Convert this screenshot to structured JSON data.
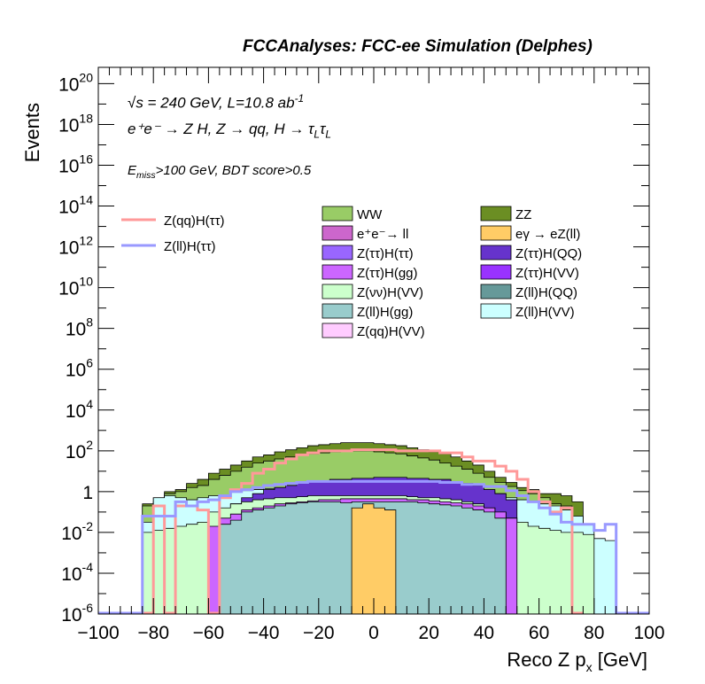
{
  "header": {
    "title": "FCCAnalyses: FCC-ee Simulation (Delphes)"
  },
  "annotations": {
    "energy": "√s = 240 GeV, L=10.8 ab",
    "energy_exp": "-1",
    "process": "e⁺e⁻ → Z H, Z → qq, H → τ",
    "process_sub": "L",
    "selection_prefix": "E",
    "selection_sub": "miss",
    "selection_rest": ">100 GeV, BDT score>0.5"
  },
  "chart_data": {
    "type": "histogram",
    "title": "FCCAnalyses: FCC-ee Simulation (Delphes)",
    "xlabel": "Reco Z p",
    "xlabel_sub": "x",
    "xlabel_unit": " [GeV]",
    "ylabel": "Events",
    "xlim": [
      -100,
      100
    ],
    "ylim_log10": [
      -6,
      20.8
    ],
    "log_y": true,
    "x_ticks": [
      -100,
      -80,
      -60,
      -40,
      -20,
      0,
      20,
      40,
      60,
      80,
      100
    ],
    "y_ticks": [
      {
        "exp": -6,
        "label": "10",
        "sup": "-6"
      },
      {
        "exp": -4,
        "label": "10",
        "sup": "-4"
      },
      {
        "exp": -2,
        "label": "10",
        "sup": "-2"
      },
      {
        "exp": 0,
        "label": "1",
        "sup": ""
      },
      {
        "exp": 2,
        "label": "10",
        "sup": "2"
      },
      {
        "exp": 4,
        "label": "10",
        "sup": "4"
      },
      {
        "exp": 6,
        "label": "10",
        "sup": "6"
      },
      {
        "exp": 8,
        "label": "10",
        "sup": "8"
      },
      {
        "exp": 10,
        "label": "10",
        "sup": "10"
      },
      {
        "exp": 12,
        "label": "10",
        "sup": "12"
      },
      {
        "exp": 14,
        "label": "10",
        "sup": "14"
      },
      {
        "exp": 16,
        "label": "10",
        "sup": "16"
      },
      {
        "exp": 18,
        "label": "10",
        "sup": "18"
      },
      {
        "exp": 20,
        "label": "10",
        "sup": "20"
      }
    ],
    "bin_width": 4,
    "stack_envelopes": [
      {
        "name": "Z(qq)H(VV)",
        "color": "#ffccff",
        "x_range": [
          -52,
          68
        ],
        "log10_values": [
          -0.7,
          -0.4,
          -0.1,
          0.2,
          0.4,
          0.6,
          0.8,
          0.9,
          1.0,
          1.05,
          1.1,
          1.15,
          1.2,
          1.2,
          1.2,
          1.2,
          1.2,
          1.15,
          1.1,
          1.05,
          1.0,
          0.9,
          0.8,
          0.6,
          0.4,
          0.1,
          -0.2,
          -0.6,
          -1.0,
          -1.5
        ]
      },
      {
        "name": "ZZ",
        "color": "#6b8e23",
        "x_range": [
          -88,
          80
        ],
        "log10_values": [
          -6,
          -0.6,
          -0.3,
          0.0,
          0.1,
          0.4,
          0.6,
          0.9,
          1.1,
          1.3,
          1.5,
          1.7,
          1.8,
          1.95,
          2.05,
          2.15,
          2.25,
          2.3,
          2.35,
          2.4,
          2.4,
          2.4,
          2.35,
          2.3,
          2.25,
          2.15,
          2.05,
          1.95,
          1.85,
          1.7,
          1.5,
          1.3,
          1.0,
          0.7,
          0.45,
          0.2,
          0.1,
          -0.1,
          -0.1,
          -0.2,
          -0.5,
          -6
        ]
      },
      {
        "name": "WW",
        "color": "#99cc66",
        "x_range": [
          -88,
          76
        ],
        "log10_values": [
          -6,
          -0.7,
          -0.5,
          -0.1,
          0.0,
          0.2,
          0.3,
          0.6,
          0.8,
          1.0,
          1.2,
          1.4,
          1.5,
          1.6,
          1.7,
          1.8,
          1.85,
          1.9,
          1.95,
          2.0,
          2.0,
          2.0,
          1.95,
          1.9,
          1.85,
          1.75,
          1.65,
          1.55,
          1.4,
          1.25,
          1.1,
          0.9,
          0.7,
          0.45,
          0.25,
          0.05,
          -0.1,
          -0.3,
          -0.6,
          -0.7,
          -6
        ]
      },
      {
        "name": "Z(ll)H(VV)",
        "color": "#ccffff",
        "x_range": [
          -84,
          88
        ],
        "log10_values": [
          -1.5,
          -0.3,
          -0.2,
          -0.3,
          -0.4,
          -0.3,
          -0.2,
          -0.2,
          0.0,
          0.05,
          0.1,
          0.15,
          0.2,
          0.2,
          0.25,
          0.25,
          0.3,
          0.3,
          0.3,
          0.3,
          0.3,
          0.3,
          0.3,
          0.3,
          0.25,
          0.25,
          0.2,
          0.2,
          0.15,
          0.1,
          0.05,
          0.0,
          -0.1,
          -0.3,
          -0.4,
          -0.5,
          -0.6,
          -0.7,
          -0.9,
          -1.2,
          -1.6,
          -2.3,
          -2.4
        ]
      },
      {
        "name": "Z(ττ)H(QQ)",
        "color": "#6633cc",
        "x_range": [
          -52,
          52
        ],
        "log10_values": [
          -0.6,
          -0.3,
          -0.1,
          0.1,
          0.2,
          0.3,
          0.4,
          0.5,
          0.5,
          0.6,
          0.6,
          0.65,
          0.65,
          0.7,
          0.7,
          0.7,
          0.65,
          0.65,
          0.6,
          0.6,
          0.5,
          0.4,
          0.3,
          0.1,
          -0.1,
          -0.4
        ]
      },
      {
        "name": "Z(νν)H(VV)",
        "color": "#ccffcc",
        "x_range": [
          -84,
          80
        ],
        "log10_values": [
          -2.0,
          -1.9,
          -1.8,
          -1.7,
          -1.6,
          -1.5,
          -1.0,
          -0.8,
          -0.6,
          -0.5,
          -0.4,
          -0.35,
          -0.3,
          -0.3,
          -0.25,
          -0.2,
          -0.2,
          -0.2,
          -0.2,
          -0.2,
          -0.2,
          -0.2,
          -0.2,
          -0.2,
          -0.25,
          -0.3,
          -0.3,
          -0.35,
          -0.4,
          -0.5,
          -0.6,
          -0.8,
          -1.0,
          -1.3,
          -1.5,
          -1.7,
          -1.8,
          -1.9,
          -2.0,
          -2.0,
          -2.1
        ]
      },
      {
        "name": "Z(ττ)H(gg)",
        "color": "#cc66ff",
        "x_range": [
          -60,
          52
        ],
        "log10_values": [
          -1.7,
          -1.3,
          -1.1,
          -0.9,
          -0.8,
          -0.7,
          -0.6,
          -0.55,
          -0.5,
          -0.45,
          -0.4,
          -0.4,
          -0.35,
          -0.35,
          -0.35,
          -0.35,
          -0.35,
          -0.35,
          -0.4,
          -0.4,
          -0.45,
          -0.5,
          -0.55,
          -0.6,
          -0.7,
          -0.8,
          -1.0,
          -1.3
        ]
      },
      {
        "name": "Z(ll)H(gg)",
        "color": "#99cccc",
        "x_range": [
          -56,
          48
        ],
        "log10_values": [
          -1.6,
          -1.4,
          -1.0,
          -0.9,
          -0.8,
          -0.7,
          -0.6,
          -0.55,
          -0.5,
          -0.5,
          -0.5,
          -0.55,
          -0.5,
          -0.5,
          -0.5,
          -0.5,
          -0.5,
          -0.5,
          -0.55,
          -0.6,
          -0.65,
          -0.7,
          -0.8,
          -0.9,
          -1.0,
          -1.3
        ]
      },
      {
        "name": "eγ → eZ(ll)",
        "color": "#ffcc66",
        "x_range": [
          -8,
          8
        ],
        "log10_values": [
          -0.8,
          -0.6,
          -0.8,
          -0.9
        ]
      }
    ],
    "signal_lines": [
      {
        "name": "Z(qq)H(ττ)",
        "color": "#ff9999",
        "points": [
          [
            -88,
            -6
          ],
          [
            -80,
            -6
          ],
          [
            -80,
            -0.7
          ],
          [
            -76,
            -0.7
          ],
          [
            -76,
            -6
          ],
          [
            -72,
            -6
          ],
          [
            -72,
            -0.7
          ],
          [
            -64,
            -0.7
          ],
          [
            -64,
            -0.9
          ],
          [
            -60,
            -0.9
          ],
          [
            -60,
            -6
          ],
          [
            -56,
            -6
          ],
          [
            -56,
            -0.3
          ],
          [
            -52,
            -0.3
          ],
          [
            -52,
            0.1
          ],
          [
            -48,
            0.1
          ],
          [
            -48,
            0.4
          ],
          [
            -44,
            0.4
          ],
          [
            -44,
            0.9
          ],
          [
            -40,
            0.9
          ],
          [
            -40,
            1.1
          ],
          [
            -36,
            1.1
          ],
          [
            -36,
            1.4
          ],
          [
            -32,
            1.4
          ],
          [
            -32,
            1.6
          ],
          [
            -28,
            1.6
          ],
          [
            -28,
            1.8
          ],
          [
            -24,
            1.8
          ],
          [
            -24,
            1.9
          ],
          [
            -20,
            1.9
          ],
          [
            -20,
            2.0
          ],
          [
            -8,
            2.0
          ],
          [
            -8,
            2.05
          ],
          [
            8,
            2.05
          ],
          [
            8,
            2.0
          ],
          [
            24,
            2.0
          ],
          [
            24,
            1.9
          ],
          [
            32,
            1.9
          ],
          [
            32,
            1.7
          ],
          [
            36,
            1.7
          ],
          [
            36,
            1.5
          ],
          [
            44,
            1.5
          ],
          [
            44,
            1.25
          ],
          [
            48,
            1.25
          ],
          [
            48,
            1.0
          ],
          [
            52,
            1.0
          ],
          [
            52,
            0.6
          ],
          [
            56,
            0.6
          ],
          [
            56,
            0.0
          ],
          [
            60,
            0.0
          ],
          [
            60,
            -0.5
          ],
          [
            64,
            -0.5
          ],
          [
            64,
            -1.0
          ],
          [
            68,
            -1.0
          ],
          [
            68,
            -0.8
          ],
          [
            72,
            -0.8
          ],
          [
            72,
            -6
          ],
          [
            76,
            -6
          ]
        ]
      },
      {
        "name": "Z(ll)H(ττ)",
        "color": "#9999ff",
        "points": [
          [
            -100,
            -6
          ],
          [
            -84,
            -6
          ],
          [
            -84,
            -1.2
          ],
          [
            -72,
            -1.2
          ],
          [
            -72,
            -0.5
          ],
          [
            -68,
            -0.5
          ],
          [
            -68,
            -0.7
          ],
          [
            -64,
            -0.7
          ],
          [
            -64,
            -0.5
          ],
          [
            -60,
            -0.5
          ],
          [
            -60,
            -0.4
          ],
          [
            -56,
            -0.4
          ],
          [
            -56,
            -0.2
          ],
          [
            -52,
            -0.2
          ],
          [
            -52,
            0.0
          ],
          [
            -48,
            0.0
          ],
          [
            -48,
            0.1
          ],
          [
            -44,
            0.1
          ],
          [
            -44,
            0.2
          ],
          [
            -40,
            0.2
          ],
          [
            -40,
            0.3
          ],
          [
            -36,
            0.3
          ],
          [
            -36,
            0.35
          ],
          [
            -32,
            0.35
          ],
          [
            -32,
            0.4
          ],
          [
            -28,
            0.4
          ],
          [
            -28,
            0.45
          ],
          [
            -24,
            0.45
          ],
          [
            -24,
            0.5
          ],
          [
            24,
            0.5
          ],
          [
            24,
            0.45
          ],
          [
            32,
            0.45
          ],
          [
            32,
            0.35
          ],
          [
            40,
            0.35
          ],
          [
            40,
            0.25
          ],
          [
            48,
            0.25
          ],
          [
            48,
            0.05
          ],
          [
            52,
            0.05
          ],
          [
            52,
            -0.2
          ],
          [
            56,
            -0.2
          ],
          [
            56,
            -0.5
          ],
          [
            60,
            -0.5
          ],
          [
            60,
            -0.8
          ],
          [
            64,
            -0.8
          ],
          [
            64,
            -1.1
          ],
          [
            68,
            -1.1
          ],
          [
            68,
            -1.5
          ],
          [
            72,
            -1.5
          ],
          [
            72,
            -1.6
          ],
          [
            80,
            -1.6
          ],
          [
            80,
            -1.9
          ],
          [
            84,
            -1.9
          ],
          [
            84,
            -1.6
          ],
          [
            88,
            -1.6
          ],
          [
            88,
            -6
          ],
          [
            100,
            -6
          ]
        ]
      }
    ],
    "legend_lines": [
      {
        "name": "Z(qq)H(ττ)",
        "color": "#ff9999"
      },
      {
        "name": "Z(ll)H(ττ)",
        "color": "#9999ff"
      }
    ],
    "legend_boxes": [
      {
        "name": "WW",
        "color": "#99cc66",
        "col": 0,
        "row": 0
      },
      {
        "name": "ZZ",
        "color": "#6b8e23",
        "col": 1,
        "row": 0
      },
      {
        "name": "e⁺e⁻→ ll",
        "color": "#cc66cc",
        "col": 0,
        "row": 1
      },
      {
        "name": "eγ → eZ(ll)",
        "color": "#ffcc66",
        "col": 1,
        "row": 1
      },
      {
        "name": "Z(ττ)H(ττ)",
        "color": "#9966ff",
        "col": 0,
        "row": 2
      },
      {
        "name": "Z(ττ)H(QQ)",
        "color": "#6633cc",
        "col": 1,
        "row": 2
      },
      {
        "name": "Z(ττ)H(gg)",
        "color": "#cc66ff",
        "col": 0,
        "row": 3
      },
      {
        "name": "Z(ττ)H(VV)",
        "color": "#9933ff",
        "col": 1,
        "row": 3
      },
      {
        "name": "Z(νν)H(VV)",
        "color": "#ccffcc",
        "col": 0,
        "row": 4
      },
      {
        "name": "Z(ll)H(QQ)",
        "color": "#669999",
        "col": 1,
        "row": 4
      },
      {
        "name": "Z(ll)H(gg)",
        "color": "#99cccc",
        "col": 0,
        "row": 5
      },
      {
        "name": "Z(ll)H(VV)",
        "color": "#ccffff",
        "col": 1,
        "row": 5
      },
      {
        "name": "Z(qq)H(VV)",
        "color": "#ffccff",
        "col": 0,
        "row": 6
      }
    ]
  }
}
